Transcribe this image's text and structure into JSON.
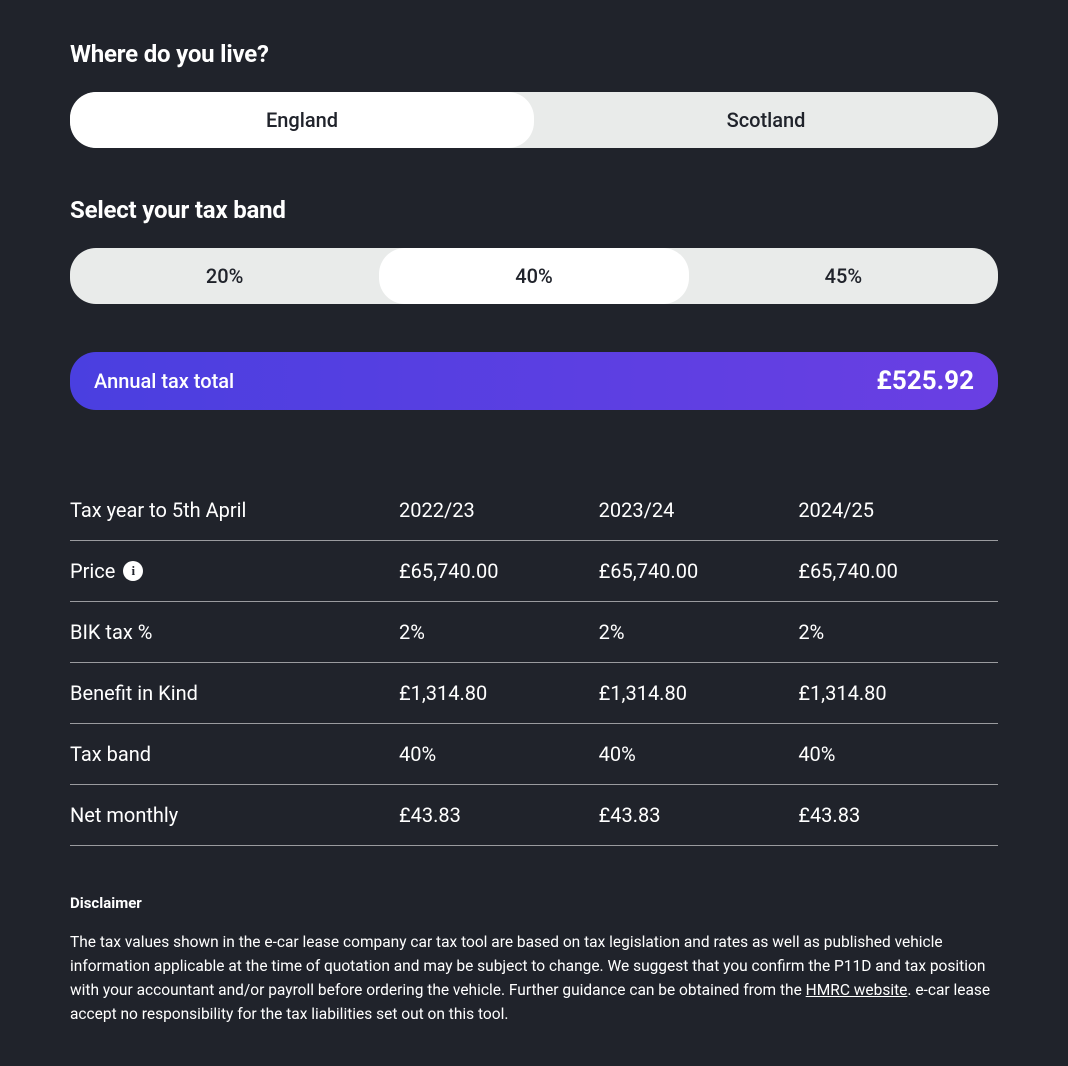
{
  "location": {
    "heading": "Where do you live?",
    "options": [
      "England",
      "Scotland"
    ],
    "selected_index": 0
  },
  "tax_band": {
    "heading": "Select your tax band",
    "options": [
      "20%",
      "40%",
      "45%"
    ],
    "selected_index": 1
  },
  "annual_total": {
    "label": "Annual tax total",
    "value": "£525.92"
  },
  "table": {
    "columns": [
      "Tax year to 5th April",
      "2022/23",
      "2023/24",
      "2024/25"
    ],
    "rows": [
      {
        "label": "Price",
        "has_info": true,
        "values": [
          "£65,740.00",
          "£65,740.00",
          "£65,740.00"
        ]
      },
      {
        "label": "BIK tax %",
        "has_info": false,
        "values": [
          "2%",
          "2%",
          "2%"
        ]
      },
      {
        "label": "Benefit in Kind",
        "has_info": false,
        "values": [
          "£1,314.80",
          "£1,314.80",
          "£1,314.80"
        ]
      },
      {
        "label": "Tax band",
        "has_info": false,
        "values": [
          "40%",
          "40%",
          "40%"
        ]
      },
      {
        "label": "Net monthly",
        "has_info": false,
        "values": [
          "£43.83",
          "£43.83",
          "£43.83"
        ]
      }
    ]
  },
  "disclaimer": {
    "heading": "Disclaimer",
    "text_before": "The tax values shown in the e-car lease company car tax tool are based on tax legislation and rates as well as published vehicle information applicable at the time of quotation and may be subject to change. We suggest that you confirm the P11D and tax position with your accountant and/or payroll before ordering the vehicle. Further guidance can be obtained from the ",
    "link_text": "HMRC website",
    "text_after": ". e-car lease accept no responsibility for the tax liabilities set out on this tool."
  },
  "colors": {
    "background": "#20232b",
    "segment_bg": "#e9ebea",
    "segment_active": "#ffffff",
    "gradient_start": "#4a3fe0",
    "gradient_end": "#6a3fe3",
    "text": "#ffffff"
  }
}
